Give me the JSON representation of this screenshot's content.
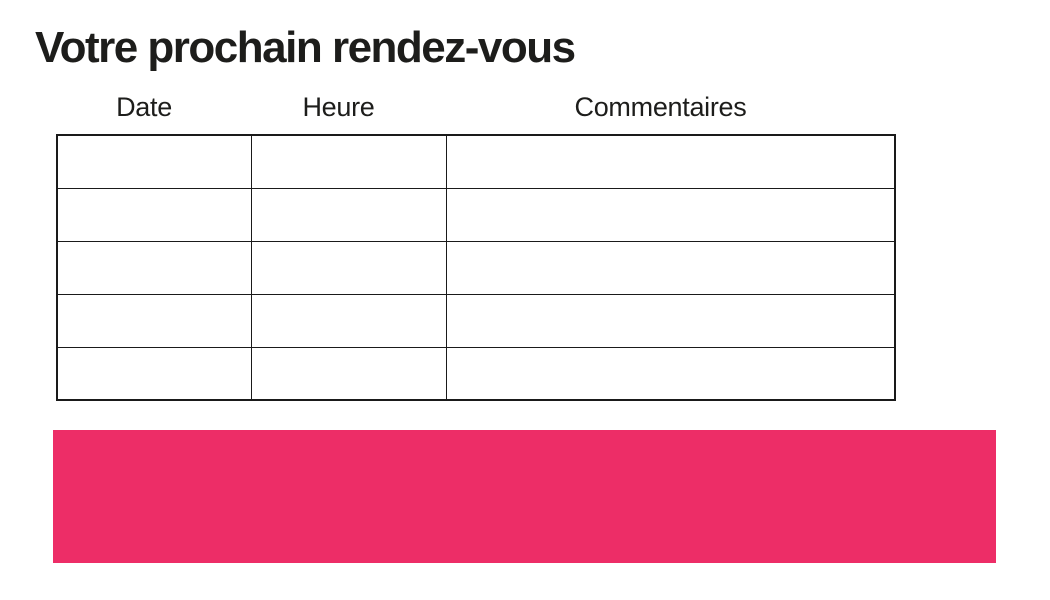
{
  "page": {
    "title": "Votre prochain rendez-vous"
  },
  "table": {
    "headers": [
      "Date",
      "Heure",
      "Commentaires"
    ],
    "rows": [
      [
        "",
        "",
        ""
      ],
      [
        "",
        "",
        ""
      ],
      [
        "",
        "",
        ""
      ],
      [
        "",
        "",
        ""
      ],
      [
        "",
        "",
        ""
      ]
    ]
  },
  "banner": {
    "text": ""
  },
  "colors": {
    "accent_pink": "#ED2D67",
    "table_border": "#1A1A1A",
    "text": "#1D1D1B",
    "background": "#FFFFFF"
  }
}
